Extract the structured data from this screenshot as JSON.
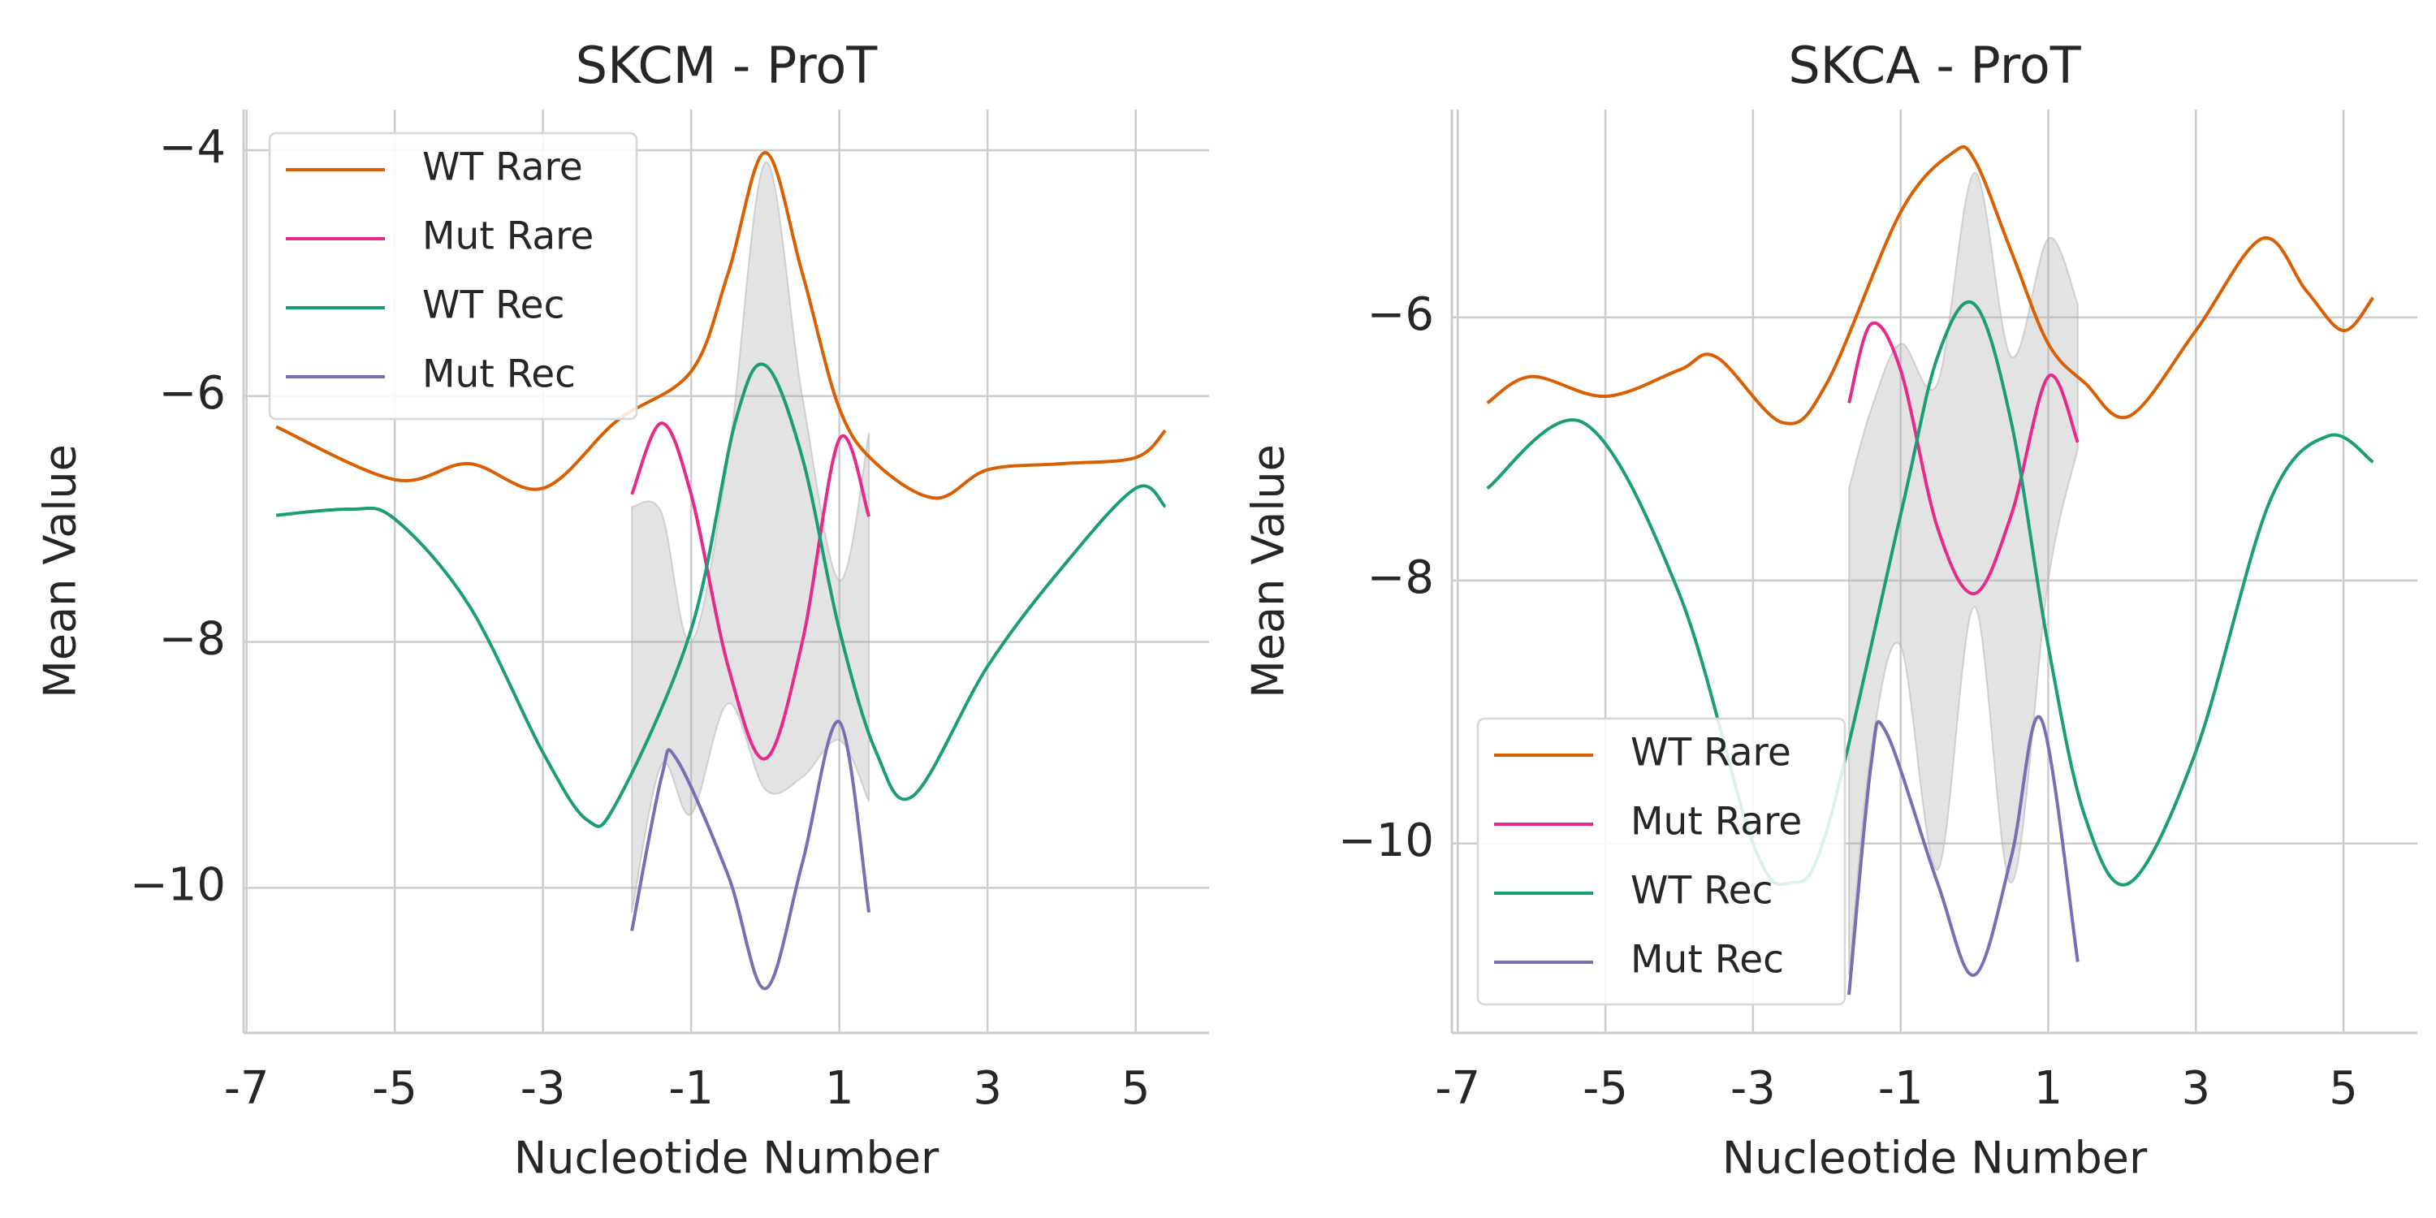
{
  "chart_data": [
    {
      "type": "line",
      "title": "SKCM - ProT",
      "xlabel": "Nucleotide Number",
      "ylabel": "Mean Value",
      "xlim": [
        -7.04,
        5.99
      ],
      "ylim": [
        -11.18,
        -3.67
      ],
      "xticks": [
        -7,
        -5,
        -3,
        -1,
        1,
        3,
        5
      ],
      "yticks": [
        {
          "value": -10,
          "label": "−10"
        },
        {
          "value": -8,
          "label": "−8"
        },
        {
          "value": -6,
          "label": "−6"
        },
        {
          "value": -4,
          "label": "−4"
        }
      ],
      "grid": true,
      "legend": "upper left",
      "band": {
        "color": "#b0b0b0",
        "x": [
          -1.8,
          -1.4,
          -1,
          -0.5,
          0,
          0.5,
          1,
          1.4
        ],
        "upper": [
          -6.9,
          -6.95,
          -8.0,
          -6.5,
          -4.1,
          -6.0,
          -7.5,
          -6.3
        ],
        "lower": [
          -10.2,
          -9.0,
          -9.4,
          -8.5,
          -9.2,
          -9.1,
          -8.8,
          -9.3
        ]
      },
      "series": [
        {
          "name": "WT Rare",
          "color": "#d95f02",
          "x": [
            -6.6,
            -5,
            -4,
            -3,
            -2,
            -1,
            -0.5,
            0,
            0.5,
            1,
            1.5,
            2.3,
            3,
            4,
            5,
            5.4
          ],
          "values": [
            -6.25,
            -6.68,
            -6.55,
            -6.75,
            -6.2,
            -5.8,
            -5.0,
            -4.02,
            -5.0,
            -6.1,
            -6.55,
            -6.83,
            -6.6,
            -6.55,
            -6.5,
            -6.28
          ]
        },
        {
          "name": "Mut Rare",
          "color": "#e7298a",
          "x": [
            -1.8,
            -1.4,
            -1,
            -0.5,
            0,
            0.5,
            1,
            1.4
          ],
          "values": [
            -6.8,
            -6.22,
            -6.8,
            -8.2,
            -8.95,
            -8.0,
            -6.35,
            -6.98
          ]
        },
        {
          "name": "WT Rec",
          "color": "#1b9e77",
          "x": [
            -6.6,
            -5.6,
            -5,
            -4,
            -3,
            -2.4,
            -2,
            -1,
            -0.4,
            0,
            0.5,
            1,
            1.5,
            2,
            3,
            4,
            5,
            5.4
          ],
          "values": [
            -6.97,
            -6.92,
            -7.0,
            -7.7,
            -8.9,
            -9.45,
            -9.3,
            -7.9,
            -6.2,
            -5.75,
            -6.5,
            -7.9,
            -8.9,
            -9.25,
            -8.2,
            -7.4,
            -6.75,
            -6.9
          ]
        },
        {
          "name": "Mut Rec",
          "color": "#7570b3",
          "x": [
            -1.8,
            -1.4,
            -1.2,
            -0.5,
            0,
            0.5,
            1,
            1.4
          ],
          "values": [
            -10.35,
            -9.1,
            -8.95,
            -9.9,
            -10.82,
            -9.8,
            -8.65,
            -10.2
          ]
        }
      ]
    },
    {
      "type": "line",
      "title": "SKCA - ProT",
      "xlabel": "Nucleotide Number",
      "ylabel": "Mean Value",
      "xlim": [
        -7.08,
        6.0
      ],
      "ylim": [
        -11.44,
        -4.42
      ],
      "xticks": [
        -7,
        -5,
        -3,
        -1,
        1,
        3,
        5
      ],
      "yticks": [
        {
          "value": -10,
          "label": "−10"
        },
        {
          "value": -8,
          "label": "−8"
        },
        {
          "value": -6,
          "label": "−6"
        }
      ],
      "grid": true,
      "legend": "lower left",
      "band": {
        "color": "#b0b0b0",
        "x": [
          -1.7,
          -1.4,
          -1,
          -0.5,
          0,
          0.5,
          1,
          1.4
        ],
        "upper": [
          -7.3,
          -6.7,
          -6.2,
          -6.5,
          -4.9,
          -6.3,
          -5.4,
          -5.9
        ],
        "lower": [
          -11.0,
          -9.3,
          -8.5,
          -10.2,
          -8.2,
          -10.3,
          -8.0,
          -7.0
        ]
      },
      "series": [
        {
          "name": "WT Rare",
          "color": "#d95f02",
          "x": [
            -6.6,
            -6,
            -5,
            -4,
            -3.5,
            -2.6,
            -2,
            -1,
            -0.3,
            0,
            0.5,
            1,
            1.5,
            2.1,
            3,
            3.9,
            4.5,
            5,
            5.4
          ],
          "values": [
            -6.65,
            -6.45,
            -6.6,
            -6.4,
            -6.3,
            -6.8,
            -6.5,
            -5.2,
            -4.75,
            -4.8,
            -5.5,
            -6.2,
            -6.5,
            -6.75,
            -6.1,
            -5.4,
            -5.8,
            -6.1,
            -5.85
          ]
        },
        {
          "name": "Mut Rare",
          "color": "#e7298a",
          "x": [
            -1.7,
            -1.4,
            -1,
            -0.5,
            0,
            0.5,
            1,
            1.4
          ],
          "values": [
            -6.65,
            -6.05,
            -6.4,
            -7.6,
            -8.1,
            -7.5,
            -6.45,
            -6.95
          ]
        },
        {
          "name": "WT Rec",
          "color": "#1b9e77",
          "x": [
            -6.6,
            -5.3,
            -4,
            -3,
            -2.5,
            -2,
            -1,
            -0.5,
            0,
            0.5,
            1,
            1.5,
            2.1,
            3,
            4,
            4.8,
            5.4
          ],
          "values": [
            -7.3,
            -6.8,
            -8.1,
            -10.0,
            -10.3,
            -9.9,
            -7.5,
            -6.3,
            -5.9,
            -6.8,
            -8.5,
            -9.8,
            -10.3,
            -9.3,
            -7.4,
            -6.9,
            -7.1
          ]
        },
        {
          "name": "Mut Rec",
          "color": "#7570b3",
          "x": [
            -1.7,
            -1.4,
            -1.2,
            -0.5,
            0,
            0.5,
            0.9,
            1.4
          ],
          "values": [
            -11.15,
            -9.4,
            -9.15,
            -10.3,
            -11.0,
            -10.1,
            -9.05,
            -10.9
          ]
        }
      ]
    }
  ]
}
